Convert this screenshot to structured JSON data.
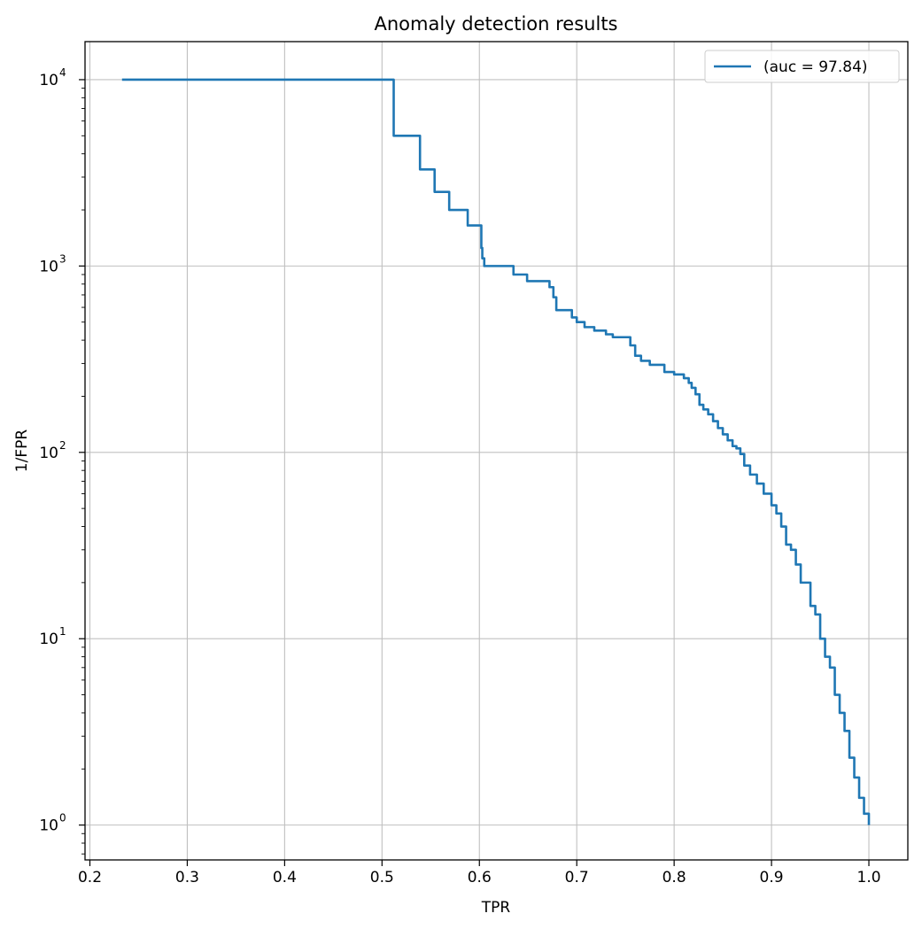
{
  "chart_data": {
    "type": "line",
    "title": "Anomaly detection results",
    "xlabel": "TPR",
    "ylabel": "1/FPR",
    "xlim": [
      0.195,
      1.04
    ],
    "ylim": [
      0.65,
      16000
    ],
    "yscale": "log",
    "grid": true,
    "legend_position": "top-right",
    "x_ticks": [
      0.2,
      0.3,
      0.4,
      0.5,
      0.6,
      0.7,
      0.8,
      0.9,
      1.0
    ],
    "x_tick_labels": [
      "0.2",
      "0.3",
      "0.4",
      "0.5",
      "0.6",
      "0.7",
      "0.8",
      "0.9",
      "1.0"
    ],
    "y_ticks": [
      {
        "value": 1,
        "base": "10",
        "exp": "0"
      },
      {
        "value": 10,
        "base": "10",
        "exp": "1"
      },
      {
        "value": 100,
        "base": "10",
        "exp": "2"
      },
      {
        "value": 1000,
        "base": "10",
        "exp": "3"
      },
      {
        "value": 10000,
        "base": "10",
        "exp": "4"
      }
    ],
    "series": [
      {
        "name": "(auc = 97.84)",
        "color": "#1f77b4",
        "drawstyle": "steps-post",
        "x": [
          0.233,
          0.512,
          0.539,
          0.554,
          0.569,
          0.588,
          0.602,
          0.603,
          0.605,
          0.61,
          0.635,
          0.649,
          0.672,
          0.676,
          0.679,
          0.683,
          0.695,
          0.7,
          0.708,
          0.718,
          0.73,
          0.737,
          0.755,
          0.76,
          0.766,
          0.775,
          0.79,
          0.8,
          0.81,
          0.815,
          0.818,
          0.822,
          0.826,
          0.83,
          0.835,
          0.84,
          0.845,
          0.85,
          0.855,
          0.86,
          0.864,
          0.868,
          0.872,
          0.878,
          0.885,
          0.892,
          0.9,
          0.905,
          0.91,
          0.915,
          0.92,
          0.925,
          0.93,
          0.94,
          0.945,
          0.95,
          0.955,
          0.96,
          0.965,
          0.97,
          0.975,
          0.98,
          0.985,
          0.99,
          0.995,
          1.0
        ],
        "y": [
          10000,
          5000,
          3300,
          2500,
          2000,
          1650,
          1250,
          1100,
          1000,
          1000,
          900,
          830,
          770,
          680,
          580,
          580,
          530,
          500,
          470,
          450,
          430,
          415,
          375,
          330,
          310,
          295,
          270,
          262,
          250,
          236,
          222,
          205,
          180,
          170,
          160,
          147,
          135,
          125,
          116,
          108,
          105,
          98,
          85,
          76,
          68,
          60,
          52,
          47,
          40,
          32,
          30,
          25,
          20,
          15,
          13.5,
          10,
          8,
          7,
          5,
          4,
          3.2,
          2.3,
          1.8,
          1.4,
          1.15,
          1.0
        ]
      }
    ]
  }
}
